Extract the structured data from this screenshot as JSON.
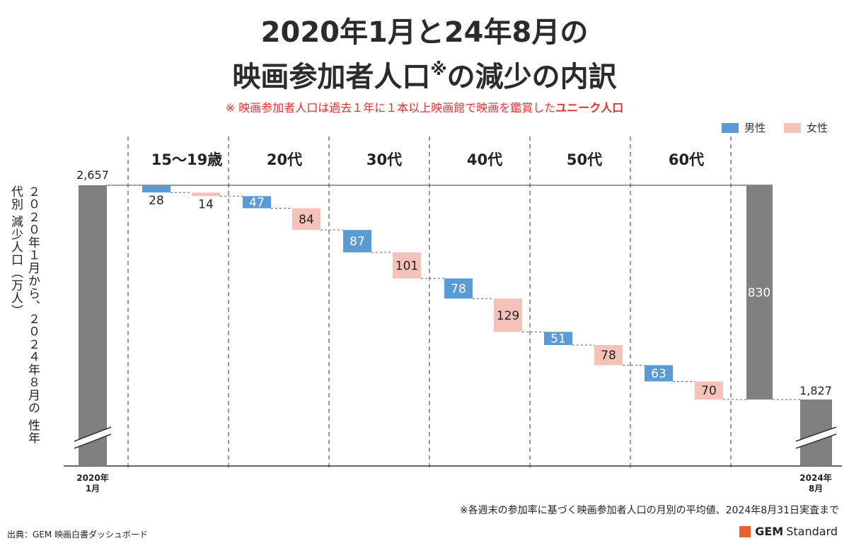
{
  "title_line1": "2020年1月と24年8月の",
  "title_line2": "映画参加者人口",
  "title_mark": "※",
  "title_line2_tail": "の減少の内訳",
  "subtitle_prefix": "※ 映画参加者人口は過去１年に１本以上映画館で映画を鑑賞した",
  "subtitle_emphasis": "ユニーク人口",
  "legend": [
    {
      "label": "男性",
      "color": "#5b9bd5"
    },
    {
      "label": "女性",
      "color": "#f4c2b8"
    }
  ],
  "ylabel": "２０２０年１月から、２０２４年８月の 性年代別 減少人口（万人）",
  "footnote": "※各週末の参加率に基づく映画参加者人口の月別の平均値、2024年8月31日実査まで",
  "source": "出典：GEM 映画白書ダッシュボード",
  "logo_bold": "GEM",
  "logo_text": "Standard",
  "chart_data": {
    "type": "bar",
    "subtype": "waterfall",
    "start": {
      "label_line1": "2020年",
      "label_line2": "1月",
      "value": 2657,
      "value_label": "2,657"
    },
    "end": {
      "label_line1": "2024年",
      "label_line2": "8月",
      "value": 1827,
      "value_label": "1,827"
    },
    "total_decrease": {
      "value": 830,
      "value_label": "830"
    },
    "groups": [
      "15〜19歳",
      "20代",
      "30代",
      "40代",
      "50代",
      "60代"
    ],
    "series": [
      {
        "name": "男性",
        "color": "#5b9bd5",
        "values": [
          28,
          47,
          87,
          78,
          51,
          63
        ]
      },
      {
        "name": "女性",
        "color": "#f4c2b8",
        "values": [
          14,
          84,
          101,
          129,
          78,
          70
        ]
      }
    ],
    "ylim_visible": [
      1560,
      2657
    ],
    "axis_break": true,
    "grid": false
  }
}
